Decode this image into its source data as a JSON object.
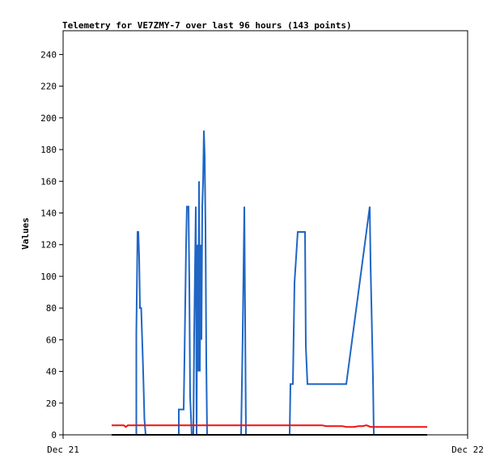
{
  "chart_data": {
    "type": "line",
    "title": "Telemetry for VE7ZMY-7 over last 96 hours (143 points)",
    "ylabel": "Values",
    "xlabel": "",
    "ylim": [
      0,
      255
    ],
    "xlim": [
      0,
      1
    ],
    "yticks": [
      0,
      20,
      40,
      60,
      80,
      100,
      120,
      140,
      160,
      180,
      200,
      220,
      240
    ],
    "xtick_labels": [
      "Dec 21",
      "Dec 22"
    ],
    "grid": false,
    "colors": {
      "blue": "#1f66c5",
      "red": "#ee1111",
      "black": "#000000"
    },
    "series": [
      {
        "color": "blue",
        "points": [
          [
            0.181,
            0
          ],
          [
            0.181,
            64
          ],
          [
            0.184,
            128
          ],
          [
            0.186,
            128
          ],
          [
            0.188,
            112
          ],
          [
            0.19,
            80
          ],
          [
            0.193,
            80
          ],
          [
            0.195,
            64
          ],
          [
            0.197,
            48
          ],
          [
            0.199,
            30
          ],
          [
            0.201,
            10
          ],
          [
            0.204,
            0
          ],
          [
            0.286,
            0
          ],
          [
            0.286,
            16
          ],
          [
            0.298,
            16
          ],
          [
            0.3,
            48
          ],
          [
            0.304,
            120
          ],
          [
            0.306,
            144
          ],
          [
            0.31,
            144
          ],
          [
            0.312,
            96
          ],
          [
            0.314,
            24
          ],
          [
            0.318,
            0
          ],
          [
            0.322,
            0
          ],
          [
            0.324,
            64
          ],
          [
            0.328,
            144
          ],
          [
            0.33,
            0
          ],
          [
            0.332,
            120
          ],
          [
            0.334,
            40
          ],
          [
            0.336,
            160
          ],
          [
            0.338,
            40
          ],
          [
            0.34,
            120
          ],
          [
            0.342,
            60
          ],
          [
            0.344,
            144
          ],
          [
            0.346,
            160
          ],
          [
            0.348,
            192
          ],
          [
            0.35,
            176
          ],
          [
            0.352,
            130
          ],
          [
            0.354,
            45
          ],
          [
            0.356,
            0
          ],
          [
            0.44,
            0
          ],
          [
            0.444,
            64
          ],
          [
            0.448,
            144
          ],
          [
            0.452,
            0
          ],
          [
            0.56,
            0
          ],
          [
            0.562,
            32
          ],
          [
            0.568,
            32
          ],
          [
            0.572,
            96
          ],
          [
            0.576,
            112
          ],
          [
            0.58,
            128
          ],
          [
            0.598,
            128
          ],
          [
            0.6,
            56
          ],
          [
            0.604,
            32
          ],
          [
            0.7,
            32
          ],
          [
            0.758,
            144
          ],
          [
            0.76,
            108
          ],
          [
            0.766,
            36
          ],
          [
            0.768,
            0
          ]
        ]
      },
      {
        "color": "red",
        "points": [
          [
            0.12,
            6
          ],
          [
            0.15,
            6
          ],
          [
            0.155,
            5
          ],
          [
            0.16,
            6
          ],
          [
            0.5,
            6
          ],
          [
            0.64,
            6
          ],
          [
            0.65,
            5.5
          ],
          [
            0.69,
            5.5
          ],
          [
            0.7,
            5
          ],
          [
            0.72,
            5
          ],
          [
            0.73,
            5.5
          ],
          [
            0.74,
            5.5
          ],
          [
            0.75,
            6
          ],
          [
            0.76,
            5
          ],
          [
            0.9,
            5
          ]
        ]
      },
      {
        "color": "black",
        "points": [
          [
            0.12,
            0
          ],
          [
            0.9,
            0
          ]
        ]
      }
    ]
  }
}
